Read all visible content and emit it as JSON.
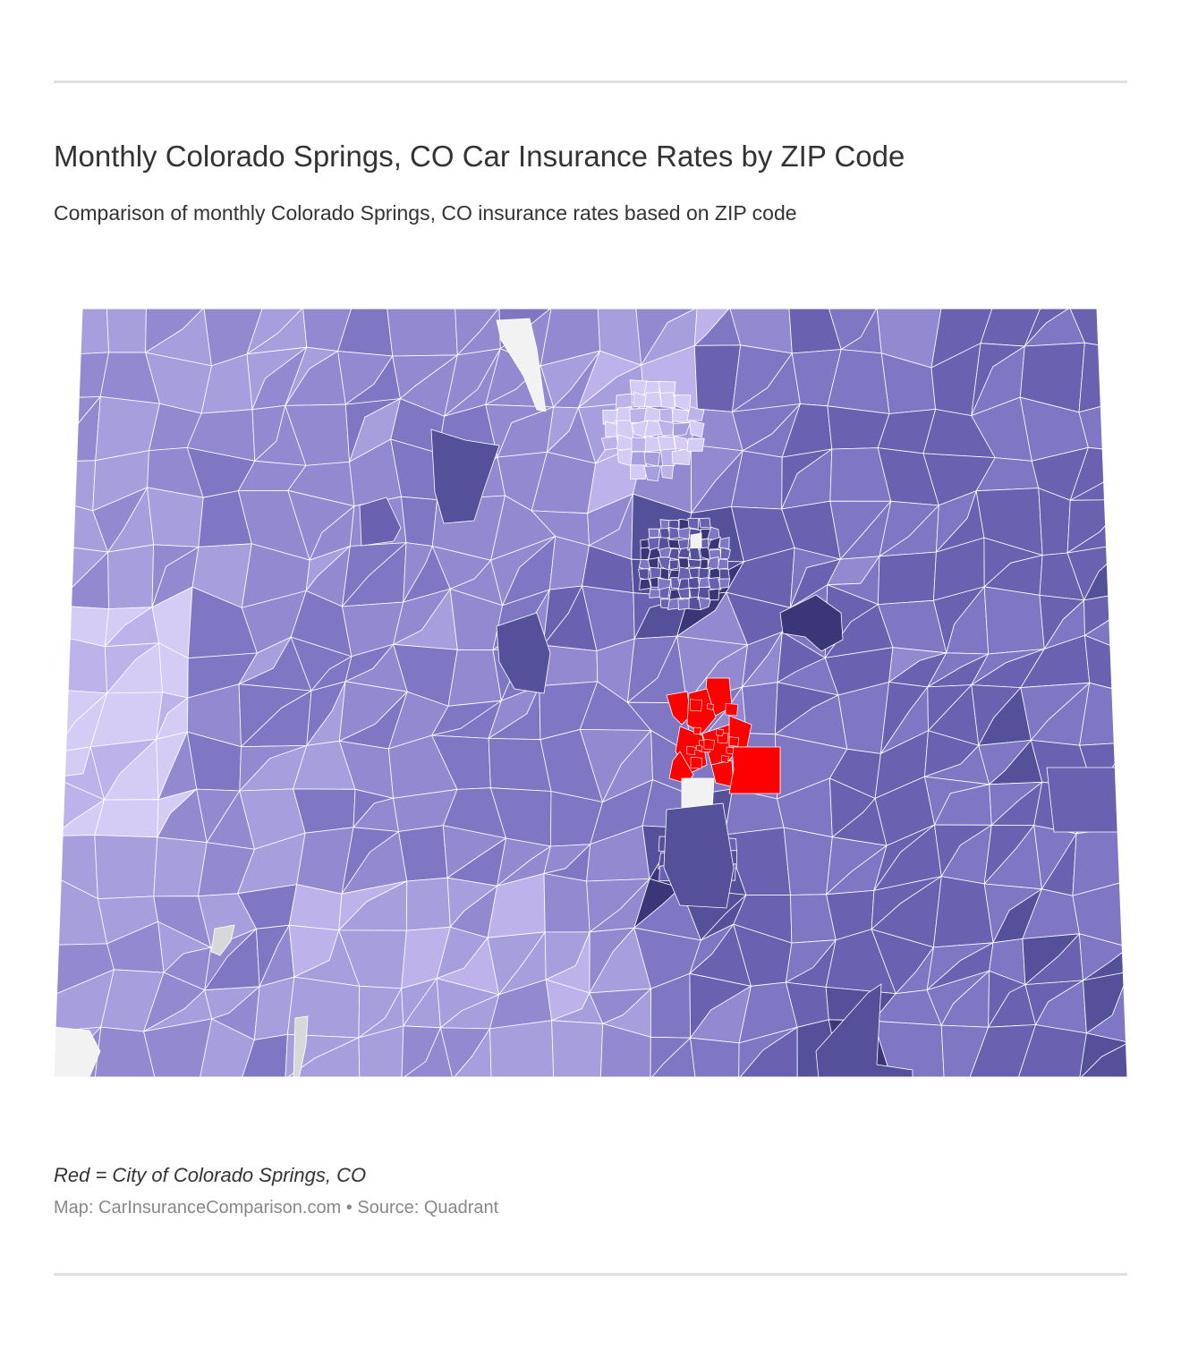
{
  "header": {
    "title": "Monthly Colorado Springs, CO Car Insurance Rates by ZIP Code",
    "subtitle": "Comparison of monthly Colorado Springs, CO insurance rates based on ZIP code"
  },
  "map": {
    "colors": {
      "lightest": "#d5ccf5",
      "light": "#bdb3ea",
      "medium_light": "#a79fdd",
      "medium": "#9389d0",
      "medium_dark": "#8077c4",
      "dark": "#6a61b0",
      "darker": "#55509a",
      "darkest": "#3a3678",
      "highlight": "#ff0000",
      "no_data": "#f2f2f2",
      "no_data_gray": "#d8d8d8",
      "border": "#ffffff"
    }
  },
  "footer": {
    "legend_note": "Red = City of Colorado Springs, CO",
    "credit": "Map: CarInsuranceComparison.com • Source: Quadrant"
  }
}
